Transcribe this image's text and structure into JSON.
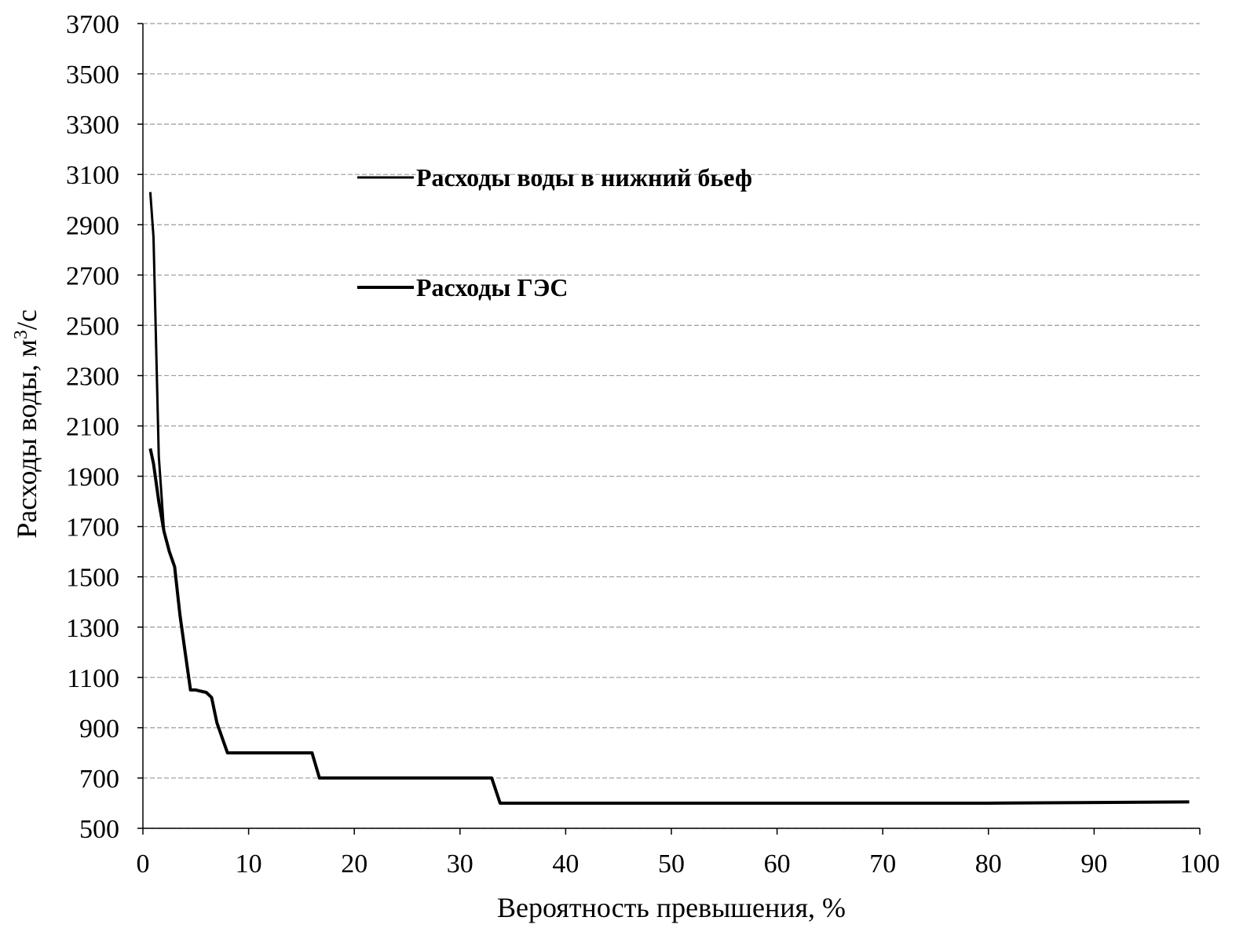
{
  "chart_data": {
    "type": "line",
    "xlabel": "Вероятность превышения, %",
    "ylabel_main": "Расходы воды, м",
    "ylabel_sup": "3",
    "ylabel_tail": "/с",
    "xlim": [
      0,
      100
    ],
    "ylim": [
      500,
      3700
    ],
    "xticks": [
      0,
      10,
      20,
      30,
      40,
      50,
      60,
      70,
      80,
      90,
      100
    ],
    "yticks": [
      500,
      700,
      900,
      1100,
      1300,
      1500,
      1700,
      1900,
      2100,
      2300,
      2500,
      2700,
      2900,
      3100,
      3300,
      3500,
      3700
    ],
    "grid": true,
    "legend_position": "inside-top-left",
    "series": [
      {
        "name": "Расходы воды в нижний бьеф",
        "color": "#000000",
        "x": [
          0.7,
          1.0,
          1.5,
          2.0,
          2.5,
          3.0,
          3.5,
          4.0,
          4.5,
          5.0,
          6.0,
          6.5,
          7.0,
          8.0,
          10.0,
          16.0,
          16.7,
          20.0,
          33.0,
          33.8,
          40.0,
          60.0,
          80.0,
          99.0
        ],
        "y": [
          3030,
          2850,
          1980,
          1680,
          1600,
          1540,
          1350,
          1200,
          1050,
          1050,
          1040,
          1020,
          920,
          800,
          800,
          800,
          700,
          700,
          700,
          600,
          600,
          600,
          600,
          605
        ]
      },
      {
        "name": "Расходы ГЭС",
        "color": "#000000",
        "x": [
          0.7,
          1.0,
          1.5,
          2.0,
          2.5,
          3.0,
          3.5,
          4.0,
          4.5,
          5.0,
          6.0,
          6.5,
          7.0,
          8.0,
          10.0,
          16.0,
          16.7,
          20.0,
          33.0,
          33.8,
          40.0,
          60.0,
          80.0,
          99.0
        ],
        "y": [
          2010,
          1950,
          1800,
          1680,
          1600,
          1540,
          1350,
          1200,
          1050,
          1050,
          1040,
          1020,
          920,
          800,
          800,
          800,
          700,
          700,
          700,
          600,
          600,
          600,
          600,
          605
        ]
      }
    ]
  }
}
